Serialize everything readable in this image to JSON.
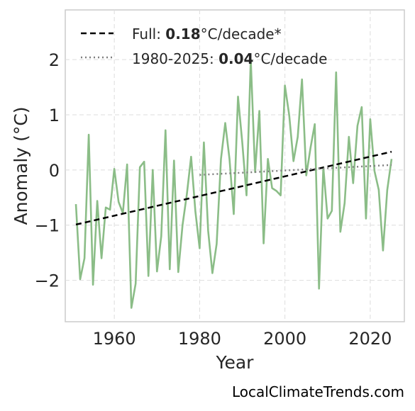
{
  "chart_data": {
    "type": "line",
    "xlabel": "Year",
    "ylabel": "Anomaly (°C)",
    "xlim": [
      1948.5,
      2028
    ],
    "ylim": [
      -2.75,
      2.9
    ],
    "xticks": [
      1960,
      1980,
      2000,
      2020
    ],
    "yticks": [
      -2,
      -1,
      0,
      1,
      2
    ],
    "ytick_labels": [
      "−2",
      "−1",
      "0",
      "1",
      "2"
    ],
    "grid": true,
    "legend_position": "top-left",
    "credit": "LocalClimateTrends.com",
    "series": [
      {
        "name": "",
        "color": "#8bbd87",
        "style": "solid",
        "x": [
          1951,
          1952,
          1953,
          1954,
          1955,
          1956,
          1957,
          1958,
          1959,
          1960,
          1961,
          1962,
          1963,
          1964,
          1965,
          1966,
          1967,
          1968,
          1969,
          1970,
          1971,
          1972,
          1973,
          1974,
          1975,
          1976,
          1977,
          1978,
          1979,
          1980,
          1981,
          1982,
          1983,
          1984,
          1985,
          1986,
          1987,
          1988,
          1989,
          1990,
          1991,
          1992,
          1993,
          1994,
          1995,
          1996,
          1997,
          1998,
          1999,
          2000,
          2001,
          2002,
          2003,
          2004,
          2005,
          2006,
          2007,
          2008,
          2009,
          2010,
          2011,
          2012,
          2013,
          2014,
          2015,
          2016,
          2017,
          2018,
          2019,
          2020,
          2021,
          2022,
          2023,
          2024,
          2025
        ],
        "values": [
          -0.62,
          -1.98,
          -1.6,
          0.64,
          -2.08,
          -0.56,
          -1.6,
          -0.68,
          -0.72,
          0.02,
          -0.58,
          -0.78,
          0.1,
          -2.5,
          -2.06,
          0.05,
          0.15,
          -1.92,
          0.0,
          -1.84,
          -1.2,
          0.72,
          -1.8,
          0.17,
          -1.85,
          -1.0,
          -0.44,
          0.24,
          -0.75,
          -1.42,
          0.5,
          -1.1,
          -1.87,
          -1.34,
          0.2,
          0.85,
          0.2,
          -0.8,
          1.33,
          0.5,
          -0.46,
          2.0,
          -0.04,
          1.07,
          -1.33,
          0.2,
          -0.33,
          -0.38,
          -0.46,
          1.53,
          0.99,
          0.16,
          0.6,
          1.64,
          -0.1,
          0.4,
          0.83,
          -2.15,
          0.05,
          -0.88,
          -0.74,
          1.77,
          -1.12,
          -0.6,
          0.6,
          -0.24,
          0.8,
          1.14,
          -0.88,
          0.92,
          -0.02,
          -0.36,
          -1.46,
          -0.36,
          0.2
        ]
      },
      {
        "name": "Full",
        "color": "#000000",
        "style": "dashed",
        "x": [
          1951,
          2025
        ],
        "values": [
          -0.99,
          0.33
        ]
      },
      {
        "name": "1980-2025",
        "color": "#808080",
        "style": "dotted",
        "x": [
          1980,
          2025
        ],
        "values": [
          -0.09,
          0.09
        ]
      }
    ],
    "legend": [
      {
        "prefix": "Full: ",
        "value": "0.18",
        "suffix": "°C/decade*",
        "color": "#000000",
        "style": "dashed"
      },
      {
        "prefix": "1980-2025: ",
        "value": "0.04",
        "suffix": "°C/decade",
        "color": "#808080",
        "style": "dotted"
      }
    ]
  }
}
